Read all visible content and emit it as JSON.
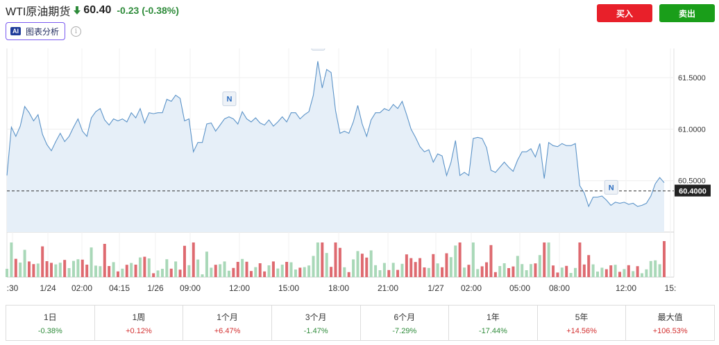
{
  "header": {
    "title": "WTI原油期货",
    "price": "60.40",
    "change": "-0.23",
    "change_pct": "(-0.38%)",
    "direction_icon": "arrow-down-icon",
    "ai_badge": "AI",
    "ai_label": "图表分析",
    "info_icon": "info-icon",
    "info_glyph": "i",
    "buy_label": "买入",
    "sell_label": "卖出"
  },
  "colors": {
    "line": "#5b93c8",
    "area": "#e6eff8",
    "volume_up": "#a9d8b8",
    "volume_down": "#de6a70",
    "buy": "#e8202a",
    "sell": "#1a9e1a",
    "negative": "#2e8b3a",
    "positive": "#d32f2f"
  },
  "chart_data": {
    "type": "area",
    "x_ticks": [
      ":30",
      "1/24",
      "02:00",
      "04:15",
      "1/26",
      "09:00",
      "12:00",
      "15:00",
      "18:00",
      "21:00",
      "1/27",
      "02:00",
      "05:00",
      "08:00",
      "12:00",
      "15:"
    ],
    "y_ticks": [
      60.5,
      61.0,
      61.5
    ],
    "y_tick_labels": [
      "60.5000",
      "61.0000",
      "61.5000"
    ],
    "ylim": [
      40.0,
      61.75
    ],
    "current_value_label": "60.4000",
    "current_value": 60.4,
    "news_marker_label": "N",
    "news_marker_positions": [
      50,
      70,
      136
    ],
    "grid": true,
    "values": [
      60.55,
      61.02,
      60.93,
      61.03,
      61.22,
      61.16,
      61.08,
      61.14,
      60.95,
      60.85,
      60.79,
      60.88,
      60.96,
      60.88,
      60.93,
      61.02,
      61.1,
      60.98,
      60.93,
      61.11,
      61.17,
      61.2,
      61.09,
      61.04,
      61.1,
      61.08,
      61.1,
      61.07,
      61.16,
      61.11,
      61.2,
      61.06,
      61.16,
      61.15,
      61.16,
      61.16,
      61.29,
      61.27,
      61.33,
      61.3,
      61.08,
      61.1,
      60.78,
      60.87,
      60.87,
      61.05,
      61.06,
      60.98,
      61.04,
      61.1,
      61.12,
      61.1,
      61.05,
      61.17,
      61.1,
      61.07,
      61.11,
      61.06,
      61.04,
      61.09,
      61.03,
      61.07,
      61.12,
      61.07,
      61.16,
      61.16,
      61.1,
      61.14,
      61.17,
      61.33,
      61.66,
      61.4,
      61.58,
      61.55,
      61.18,
      60.96,
      60.98,
      60.96,
      61.07,
      61.23,
      61.05,
      60.93,
      61.09,
      61.16,
      61.16,
      61.2,
      61.18,
      61.24,
      61.2,
      61.27,
      61.14,
      61.0,
      60.92,
      60.83,
      60.78,
      60.8,
      60.68,
      60.76,
      60.74,
      60.55,
      60.68,
      60.89,
      60.55,
      60.58,
      60.55,
      60.91,
      60.92,
      60.91,
      60.82,
      60.6,
      60.58,
      60.63,
      60.68,
      60.63,
      60.59,
      60.7,
      60.78,
      60.78,
      60.81,
      60.73,
      60.86,
      60.52,
      60.87,
      60.84,
      60.83,
      60.86,
      60.84,
      60.84,
      60.86,
      60.45,
      60.38,
      60.25,
      60.34,
      60.34,
      60.35,
      60.31,
      60.26,
      60.29,
      60.28,
      60.29,
      60.27,
      60.28,
      60.25,
      60.26,
      60.28,
      60.35,
      60.47,
      60.53,
      60.48
    ]
  },
  "volume_data": {
    "up_values": [
      20,
      38,
      21,
      21,
      20,
      24,
      0,
      0,
      0,
      0,
      0,
      0,
      0,
      0,
      0,
      0,
      0,
      0,
      12,
      0,
      0,
      0,
      0,
      0,
      0,
      0,
      0,
      0,
      0,
      0,
      0,
      0,
      0,
      0,
      0,
      0,
      0,
      0,
      0,
      0,
      0,
      0,
      0,
      0,
      0,
      0,
      0,
      0,
      0,
      0,
      0,
      0,
      0,
      0,
      0,
      0,
      0,
      0,
      0,
      0,
      0,
      0,
      0,
      0,
      0,
      0,
      0,
      0,
      0,
      0,
      0,
      0,
      0,
      0,
      0,
      0,
      0,
      0,
      0,
      0,
      0,
      0,
      0,
      0,
      0,
      0,
      0,
      0,
      0,
      0,
      0,
      0,
      0,
      0,
      0,
      0,
      0,
      0,
      0,
      0,
      0,
      0,
      0,
      0,
      0,
      0,
      0,
      0,
      0,
      0,
      0,
      0,
      0,
      0,
      0,
      0,
      0,
      0,
      0,
      0,
      0,
      0,
      0,
      0,
      0,
      0,
      0,
      0,
      0,
      0,
      0,
      0,
      0,
      0,
      0,
      0,
      0,
      0,
      0,
      0,
      0,
      0,
      0,
      0,
      0,
      0,
      0,
      0,
      0,
      0,
      70
    ],
    "down_values": [
      0,
      0,
      0,
      0,
      0,
      0,
      0,
      0,
      0,
      0,
      0,
      0,
      0,
      0,
      0,
      0,
      0,
      0,
      0,
      0,
      0,
      0,
      0,
      0,
      0,
      0,
      0,
      0,
      0,
      0,
      0,
      0,
      0,
      0,
      0,
      0,
      0,
      0,
      0,
      0,
      0,
      0,
      0,
      0,
      0,
      0,
      0,
      0,
      0,
      0,
      0,
      0,
      0,
      0,
      0,
      0,
      0,
      0,
      0,
      0,
      0,
      0,
      0,
      0,
      0,
      0,
      0,
      0,
      0,
      0,
      0,
      0,
      0,
      0,
      0,
      0,
      0,
      0,
      0,
      0,
      0,
      0,
      0,
      0,
      0,
      0,
      0,
      0,
      0,
      0,
      0,
      0,
      0,
      0,
      0,
      0,
      0,
      0,
      0,
      0,
      0,
      0,
      0,
      0,
      0,
      0,
      0,
      0,
      0,
      0,
      0,
      0,
      0,
      0,
      0,
      0,
      0,
      0,
      0,
      0,
      0,
      0,
      0,
      0,
      0,
      0,
      0,
      0,
      0,
      0,
      0,
      0,
      0,
      0,
      0,
      0,
      0,
      0,
      0,
      0,
      0,
      0,
      0,
      0,
      0,
      0,
      0,
      0,
      0,
      0,
      0
    ]
  },
  "periods": [
    {
      "label": "1日",
      "value": "-0.38%",
      "dir": "neg"
    },
    {
      "label": "1周",
      "value": "+0.12%",
      "dir": "pos"
    },
    {
      "label": "1个月",
      "value": "+6.47%",
      "dir": "pos"
    },
    {
      "label": "3个月",
      "value": "-1.47%",
      "dir": "neg"
    },
    {
      "label": "6个月",
      "value": "-7.29%",
      "dir": "neg"
    },
    {
      "label": "1年",
      "value": "-17.44%",
      "dir": "neg"
    },
    {
      "label": "5年",
      "value": "+14.56%",
      "dir": "pos"
    },
    {
      "label": "最大值",
      "value": "+106.53%",
      "dir": "pos"
    }
  ]
}
